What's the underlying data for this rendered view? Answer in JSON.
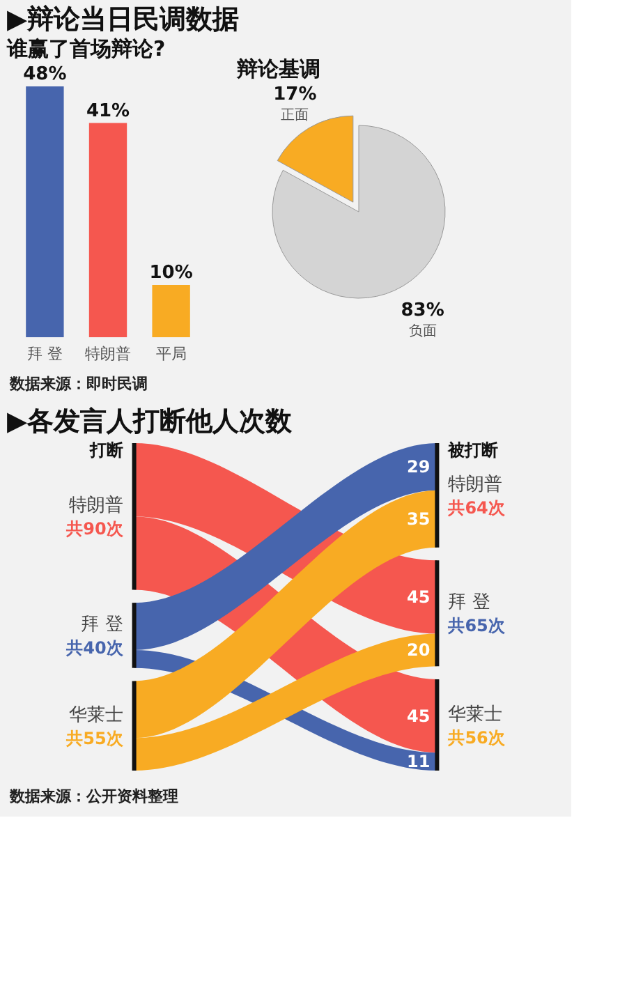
{
  "chart_data": [
    {
      "type": "bar",
      "title": "谁赢了首场辩论?",
      "categories": [
        "拜 登",
        "特朗普",
        "平局"
      ],
      "values": [
        48,
        41,
        10
      ],
      "colors": [
        "#4765ad",
        "#f5574f",
        "#f8ab23"
      ],
      "value_labels": [
        "48%",
        "41%",
        "10%"
      ],
      "annotations": [
        "▶辩论当日民调数据"
      ]
    },
    {
      "type": "pie",
      "title": "辩论基调",
      "categories": [
        "正面",
        "负面"
      ],
      "values": [
        17,
        83
      ],
      "colors": [
        "#f8ab23",
        "#d4d4d4"
      ],
      "value_labels": [
        "17%",
        "83%"
      ],
      "annotations": [
        "数据来源：即时民调"
      ]
    },
    {
      "type": "other",
      "title": "▶各发言人打断他人次数",
      "categories": [
        "特朗普",
        "拜 登",
        "华莱士"
      ],
      "series": [
        {
          "name": "特朗普",
          "color": "#f5574f",
          "values": [
            null,
            45,
            45
          ]
        },
        {
          "name": "拜 登",
          "color": "#4765ad",
          "values": [
            29,
            null,
            11
          ]
        },
        {
          "name": "华莱士",
          "color": "#f8ab23",
          "values": [
            35,
            20,
            null
          ]
        }
      ],
      "totals": [
        "共64次",
        "共65次",
        "共56次"
      ],
      "data_labels": true,
      "annotations": [
        "打断",
        "被打断",
        "共90次",
        "共40次",
        "共55次",
        "数据来源：公开资料整理"
      ]
    }
  ]
}
